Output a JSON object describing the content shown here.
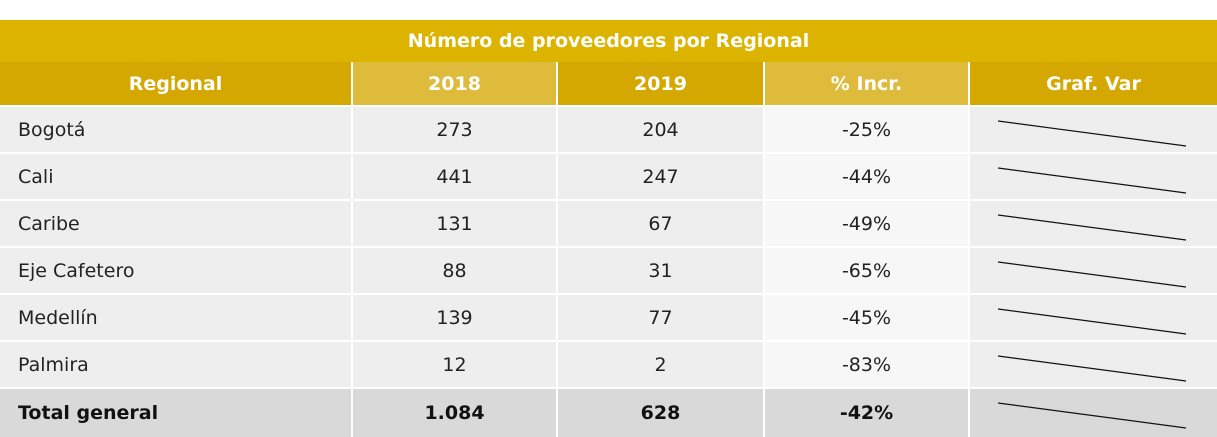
{
  "title": "Número de proveedores por Regional",
  "table": {
    "header": [
      "Regional",
      "2018",
      "2019",
      "% Incr.",
      "Graf. Var"
    ],
    "rows": [
      [
        "Bogotá",
        "273",
        "204",
        "-25%"
      ],
      [
        "Cali",
        "441",
        "247",
        "-44%"
      ],
      [
        "Caribe",
        "131",
        "67",
        "-49%"
      ],
      [
        "Eje Cafetero",
        "88",
        "31",
        "-65%"
      ],
      [
        "Medellín",
        "139",
        "77",
        "-45%"
      ],
      [
        "Palmira",
        "12",
        "2",
        "-83%"
      ]
    ],
    "total": [
      "Total general",
      "1.084",
      "628",
      "-42%"
    ]
  }
}
